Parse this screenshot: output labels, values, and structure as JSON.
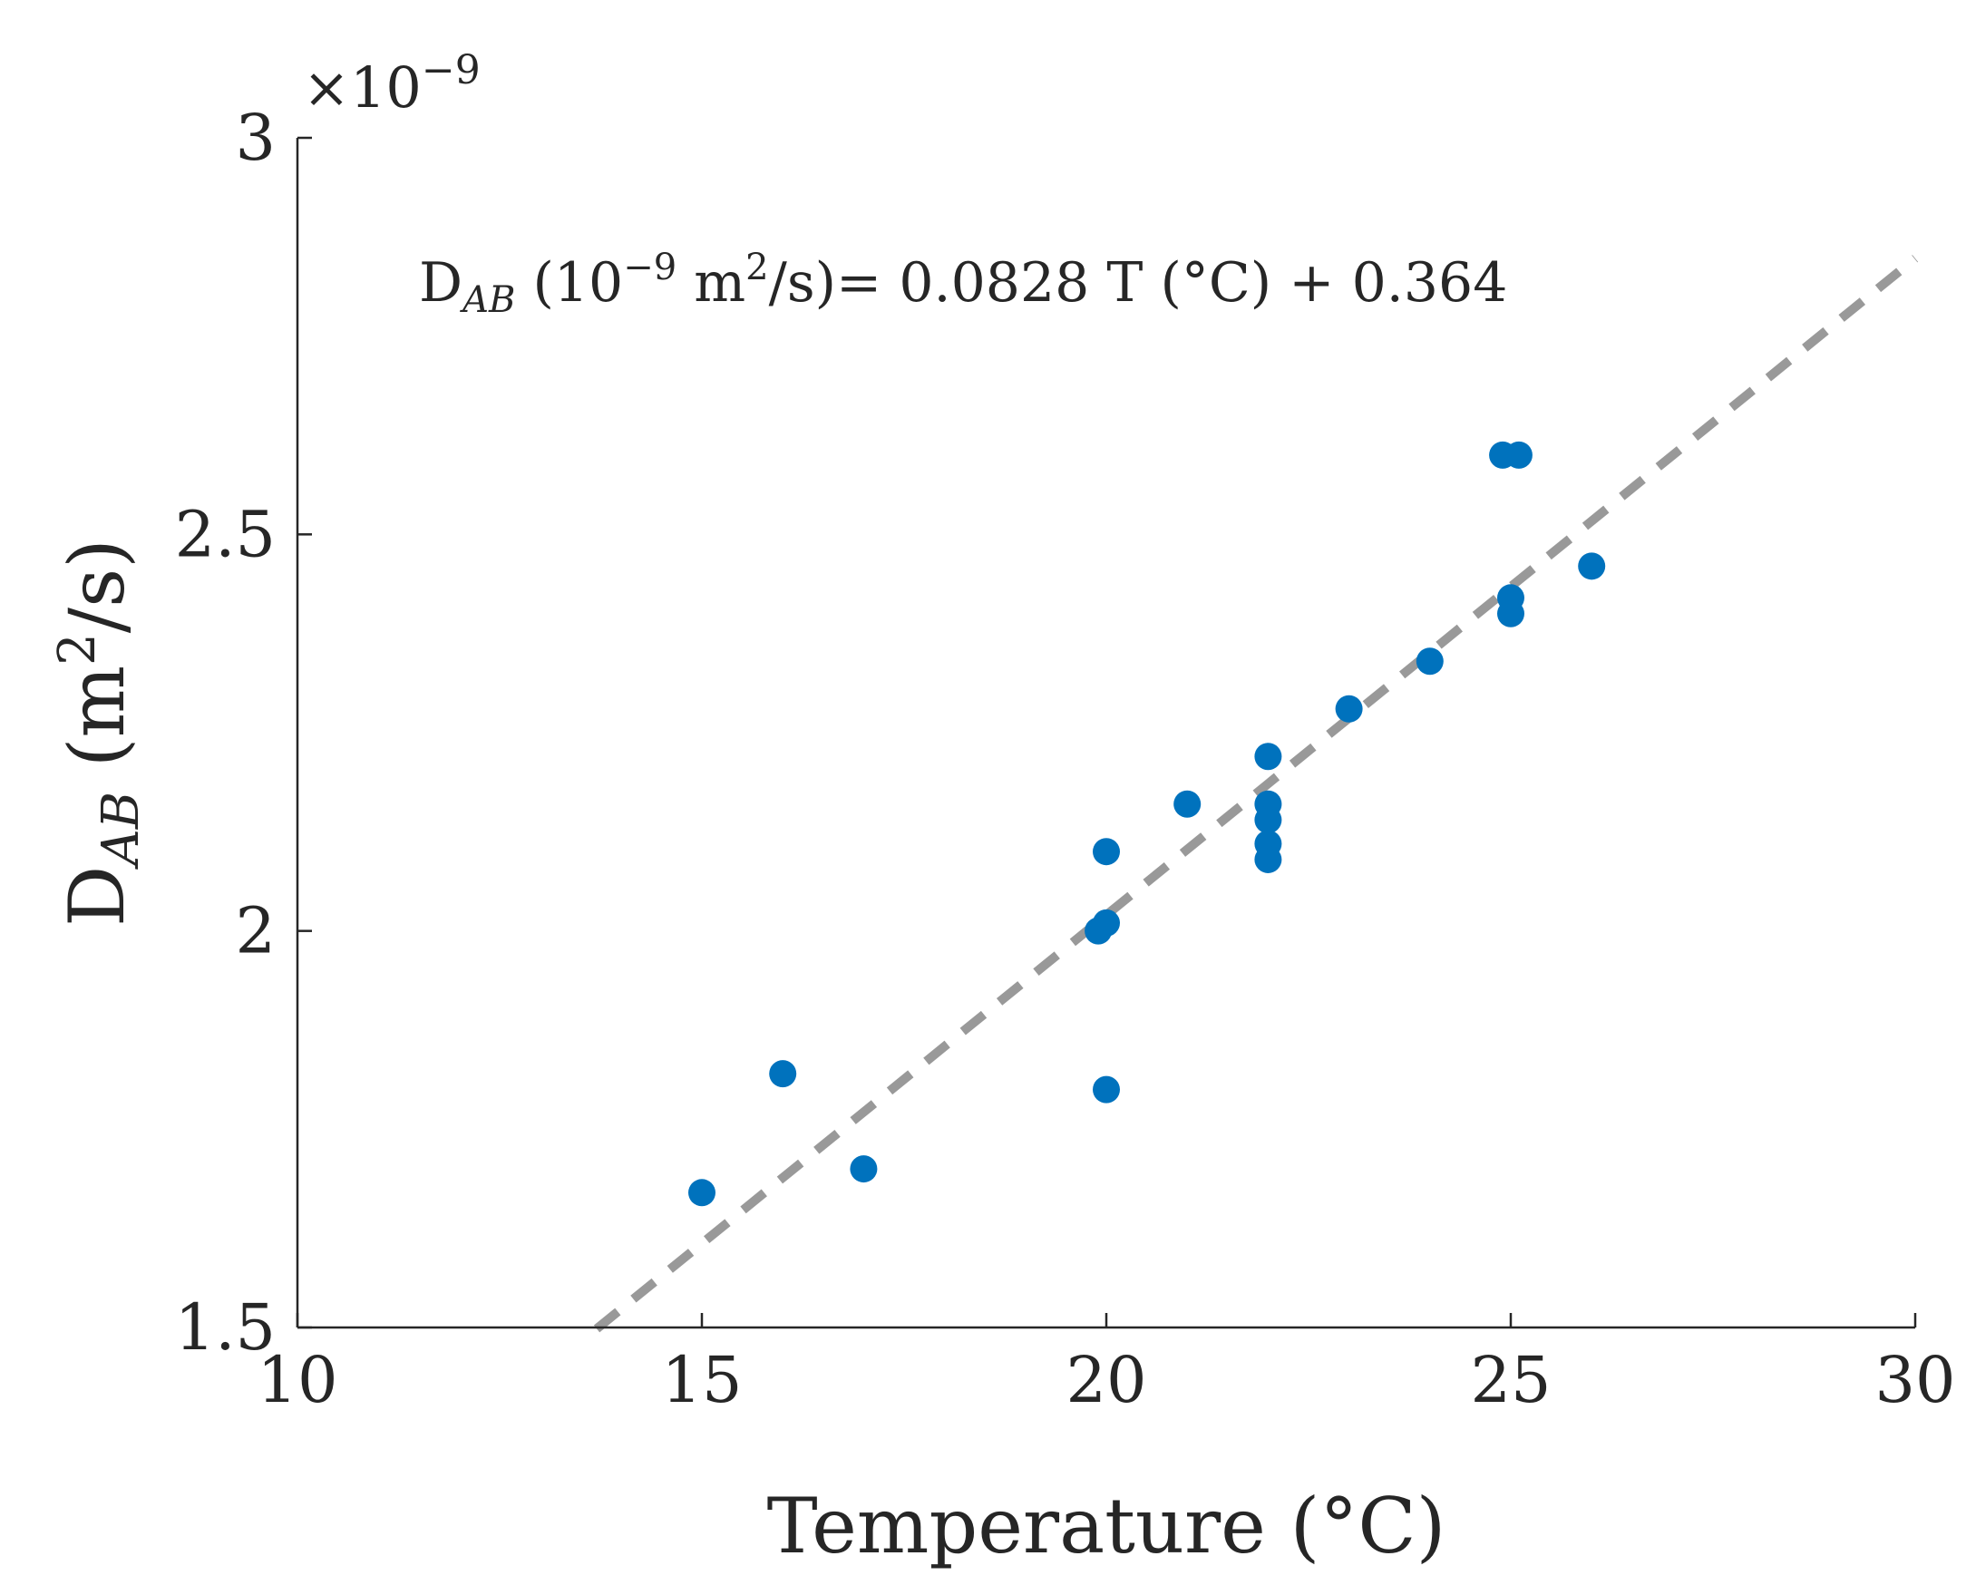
{
  "chart_data": {
    "type": "scatter",
    "xlabel": "Temperature (°C)",
    "ylabel_main": "D",
    "ylabel_sub": "AB",
    "ylabel_unit_pre": " (m",
    "ylabel_unit_sup": "2",
    "ylabel_unit_post": "/s)",
    "scale_factor_prefix": "×10",
    "scale_factor_exp": "−9",
    "xlim": [
      10,
      30
    ],
    "ylim": [
      1.5,
      3.0
    ],
    "xticks": [
      10,
      15,
      20,
      25,
      30
    ],
    "xtick_labels": [
      "10",
      "15",
      "20",
      "25",
      "30"
    ],
    "yticks": [
      1.5,
      2.0,
      2.5,
      3.0
    ],
    "ytick_labels": [
      "1.5",
      "2",
      "2.5",
      "3"
    ],
    "grid": false,
    "points": [
      {
        "x": 15,
        "y": 1.67
      },
      {
        "x": 16,
        "y": 1.82
      },
      {
        "x": 17,
        "y": 1.7
      },
      {
        "x": 19.9,
        "y": 2.0
      },
      {
        "x": 20,
        "y": 2.01
      },
      {
        "x": 20,
        "y": 2.1
      },
      {
        "x": 20,
        "y": 1.8
      },
      {
        "x": 21,
        "y": 2.16
      },
      {
        "x": 22,
        "y": 2.22
      },
      {
        "x": 22,
        "y": 2.16
      },
      {
        "x": 22,
        "y": 2.14
      },
      {
        "x": 22,
        "y": 2.11
      },
      {
        "x": 22,
        "y": 2.09
      },
      {
        "x": 23,
        "y": 2.28
      },
      {
        "x": 24,
        "y": 2.34
      },
      {
        "x": 24.9,
        "y": 2.6
      },
      {
        "x": 25.1,
        "y": 2.6
      },
      {
        "x": 25,
        "y": 2.42
      },
      {
        "x": 25,
        "y": 2.4
      },
      {
        "x": 26,
        "y": 2.46
      }
    ],
    "point_color": "#0072BD",
    "fit": {
      "slope": 0.0828,
      "intercept": 0.364,
      "x_start": 13.7,
      "x_end": 30,
      "color": "#999999",
      "style": "dashed"
    },
    "annotation": {
      "d": "D",
      "sub": "AB",
      "unit_a": " (10",
      "unit_exp": "−9",
      "unit_b": " m",
      "unit_sup": "2",
      "unit_c": "/s)= 0.0828 T (°C) + 0.364"
    }
  }
}
